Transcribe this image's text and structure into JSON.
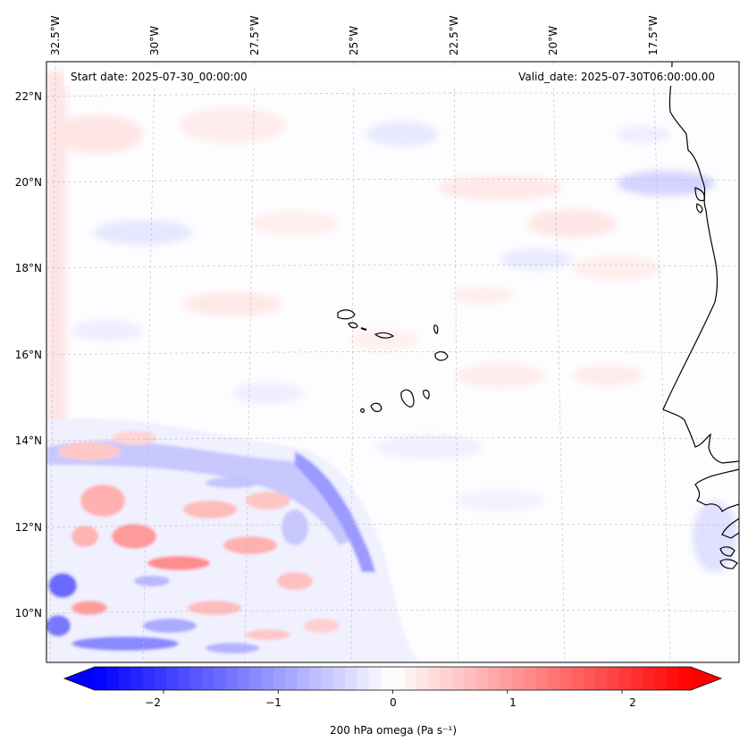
{
  "map": {
    "start_date_text": "Start date: 2025-07-30_00:00:00",
    "valid_date_text": "Valid_date: 2025-07-30T06:00:00.00",
    "lon_labels": [
      "32.5°W",
      "30°W",
      "27.5°W",
      "25°W",
      "22.5°W",
      "20°W",
      "17.5°W"
    ],
    "lat_labels": [
      "22°N",
      "20°N",
      "18°N",
      "16°N",
      "14°N",
      "12°N",
      "10°N"
    ],
    "gridlines": true,
    "coastline_color": "#000000"
  },
  "colorbar": {
    "label": "200 hPa omega (Pa s⁻¹)",
    "ticks": [
      "−2",
      "−1",
      "0",
      "1",
      "2"
    ],
    "range": [
      -2.6,
      2.6
    ],
    "colormap": "bwr",
    "colors": {
      "negative": "#0000ff",
      "zero": "#ffffff",
      "positive": "#ff0000"
    },
    "extend": "both"
  }
}
